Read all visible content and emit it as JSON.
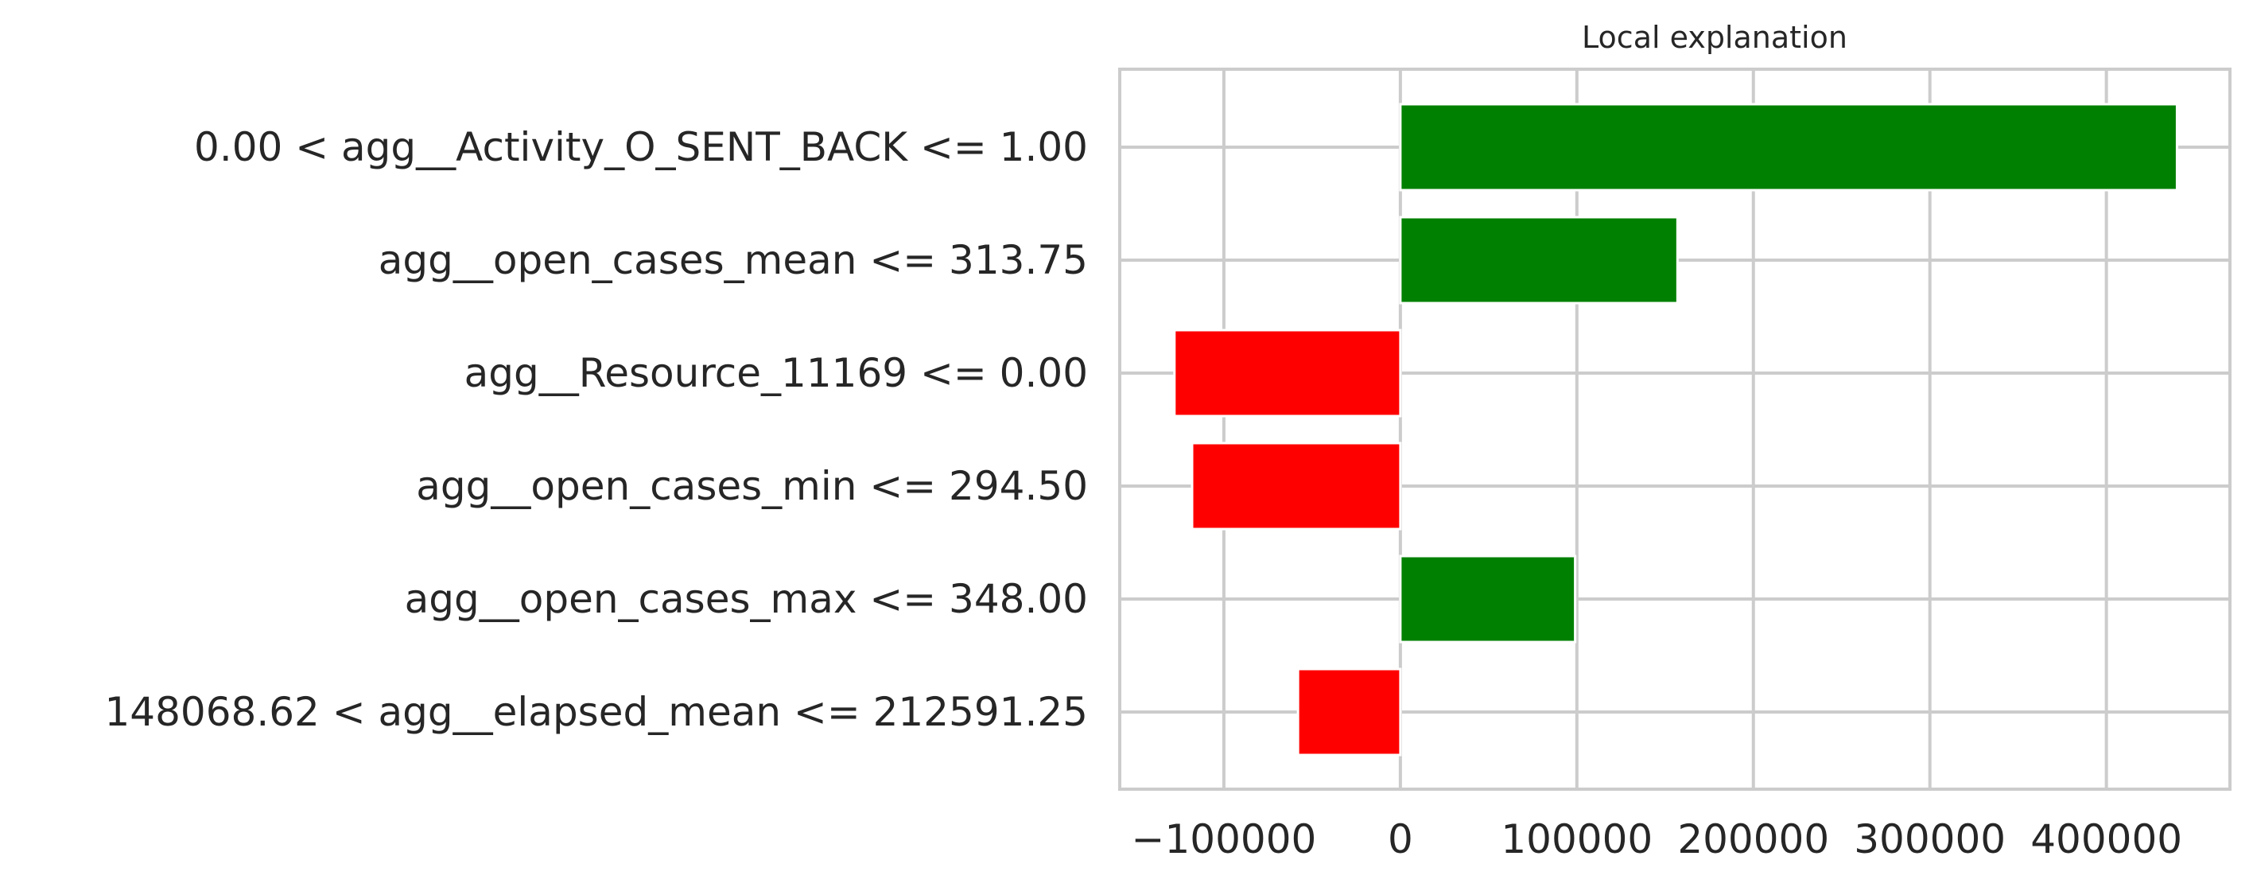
{
  "chart_data": {
    "type": "bar",
    "orientation": "horizontal",
    "title": "Local explanation",
    "xlabel": "",
    "ylabel": "",
    "categories": [
      "0.00 < agg__Activity_O_SENT_BACK <= 1.00",
      "agg__open_cases_mean <= 313.75",
      "agg__Resource_11169 <= 0.00",
      "agg__open_cases_min <= 294.50",
      "agg__open_cases_max <= 348.00",
      "148068.62 < agg__elapsed_mean <= 212591.25"
    ],
    "values": [
      440000,
      157000,
      -128000,
      -118000,
      99000,
      -58000
    ],
    "xlim": [
      -159000,
      470000
    ],
    "xticks": [
      -100000,
      0,
      100000,
      200000,
      300000,
      400000
    ],
    "xtick_labels": [
      "−100000",
      "0",
      "100000",
      "200000",
      "300000",
      "400000"
    ],
    "grid": true,
    "colors": {
      "positive": "#008000",
      "negative": "#ff0000",
      "grid": "#cccccc",
      "axes_edge": "#cccccc",
      "text": "#262626"
    }
  }
}
